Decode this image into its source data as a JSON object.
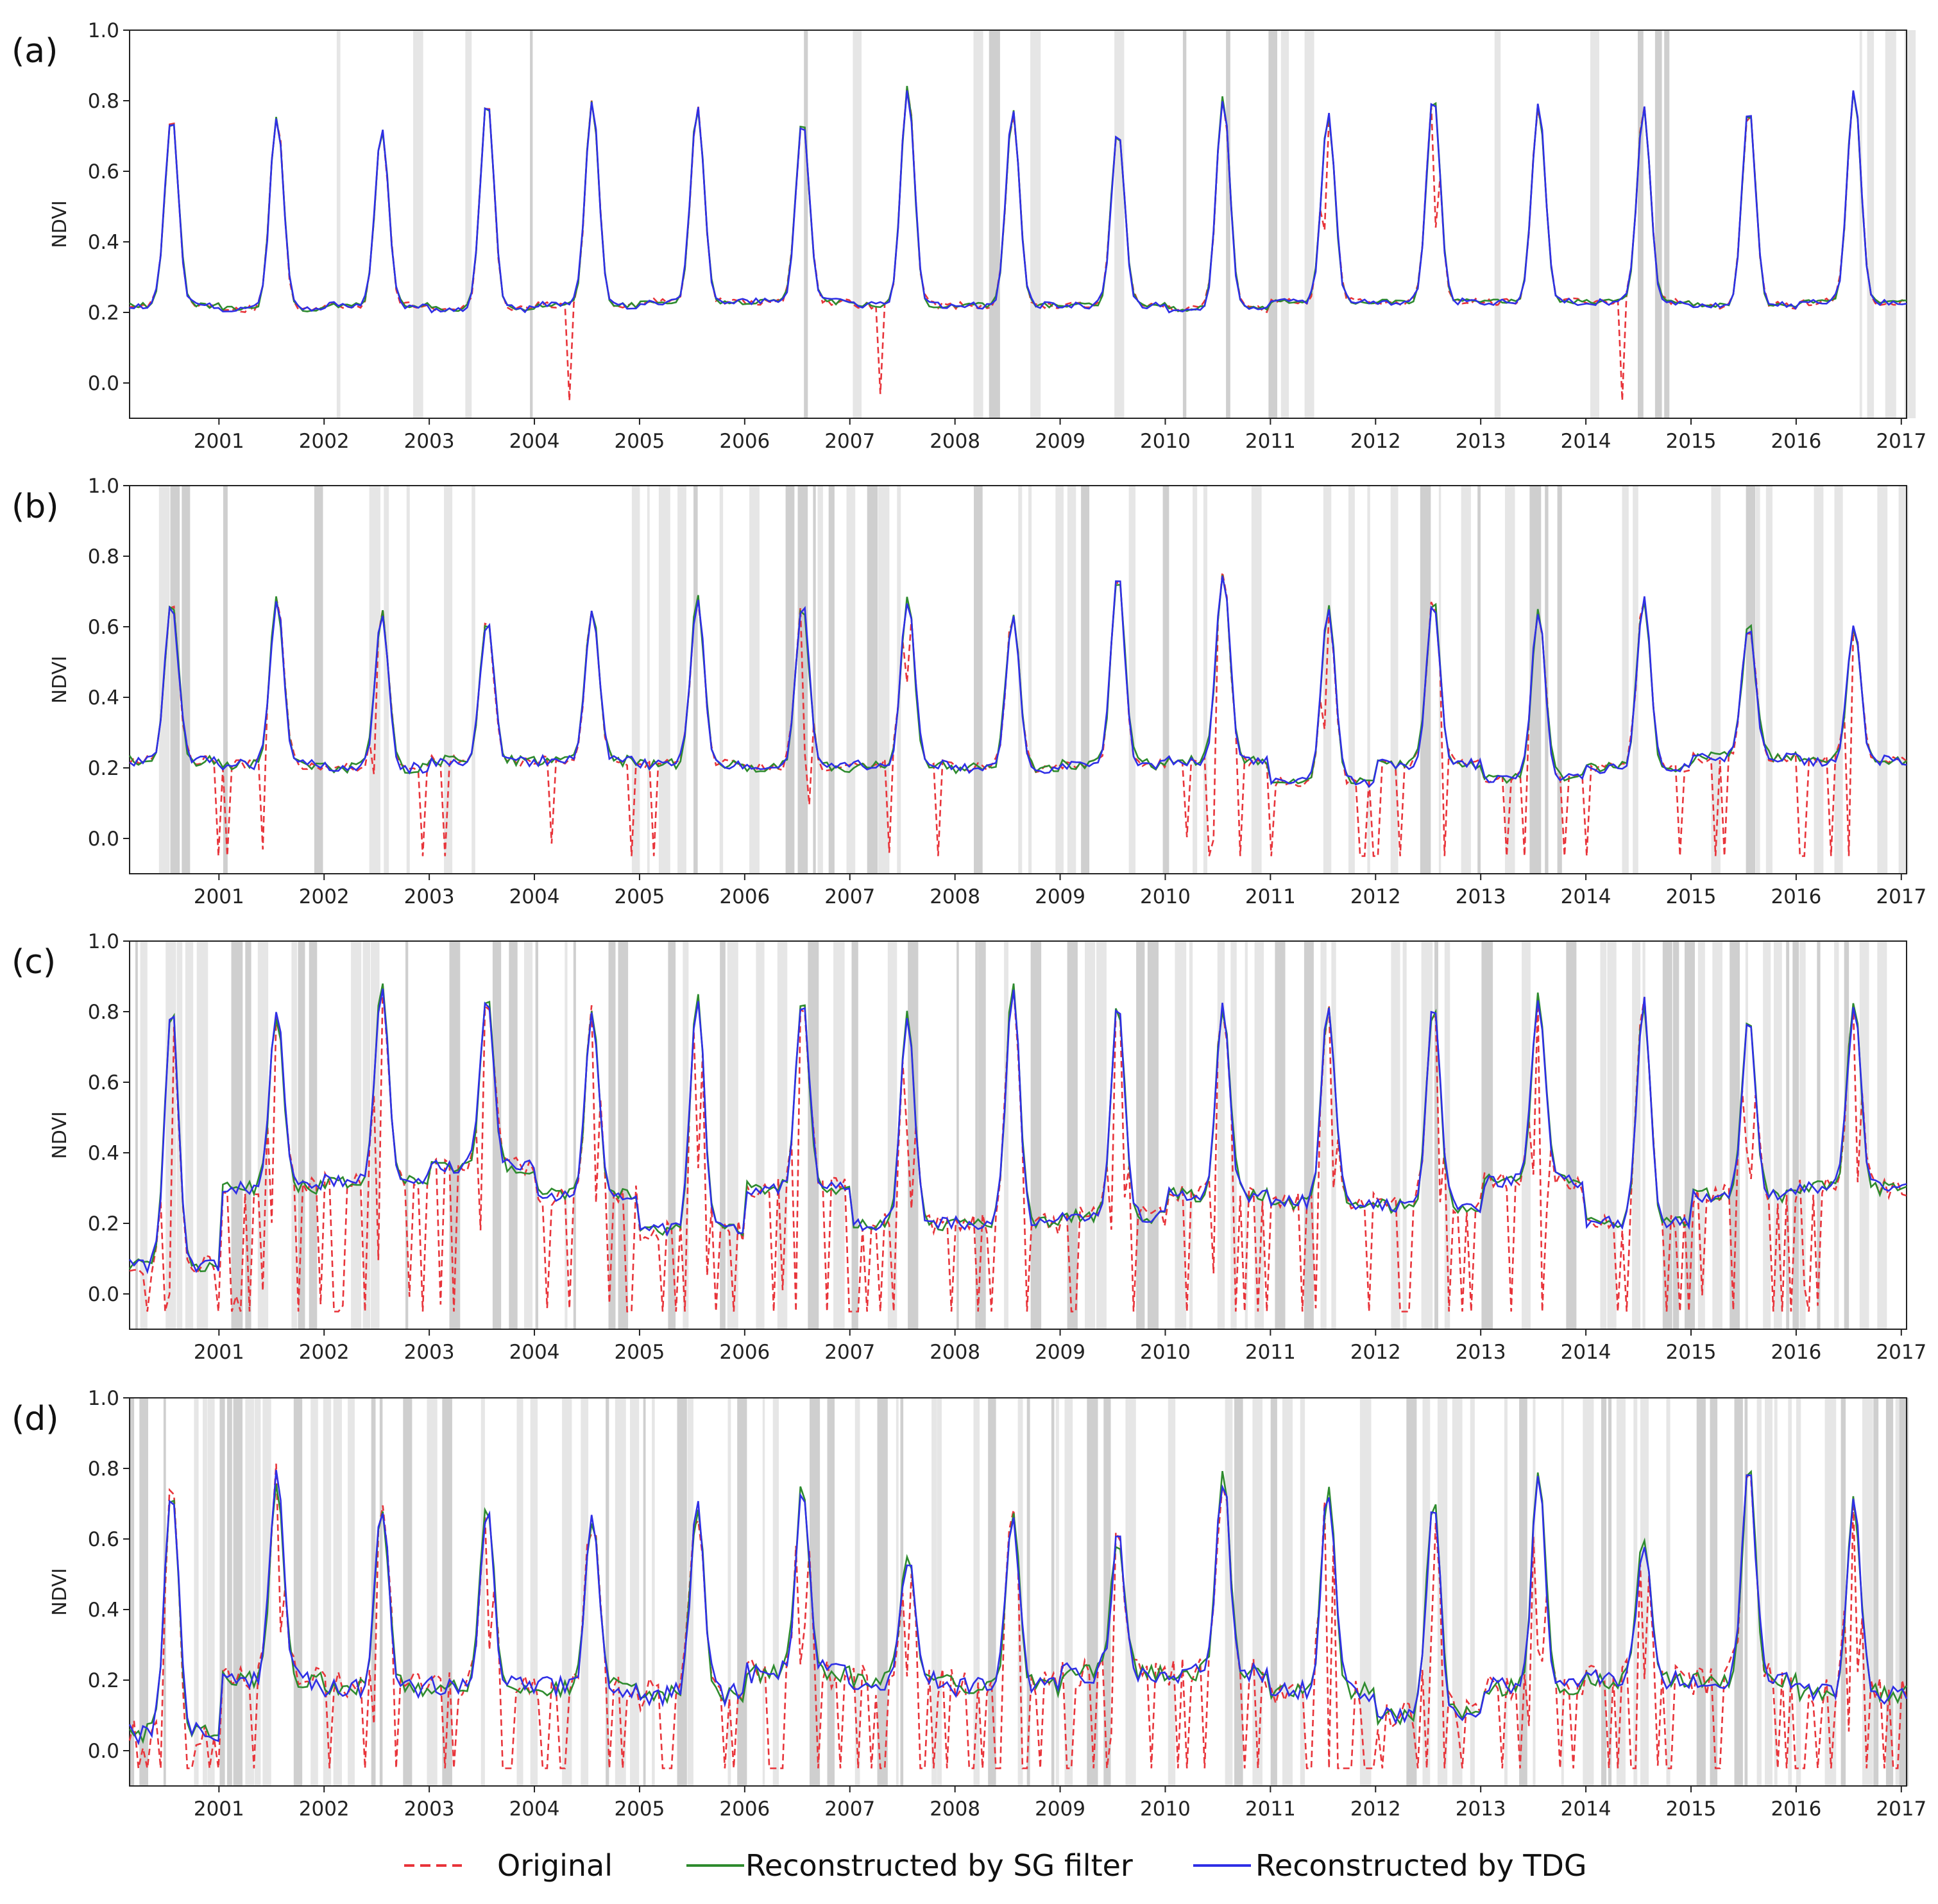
{
  "chart_data": {
    "type": "line",
    "ylabel": "NDVI",
    "ylim": [
      -0.1,
      1.0
    ],
    "xlim": [
      2000.15,
      2017.05
    ],
    "x_tick_labels": [
      "2001",
      "2002",
      "2003",
      "2004",
      "2005",
      "2006",
      "2007",
      "2008",
      "2009",
      "2010",
      "2011",
      "2012",
      "2013",
      "2014",
      "2015",
      "2016",
      "2017"
    ],
    "y_tick_labels": [
      "0.0",
      "0.2",
      "0.4",
      "0.6",
      "0.8",
      "1.0"
    ],
    "legend": {
      "placement": "bottom-center",
      "entries": [
        {
          "label": "Original",
          "color": "#e8343a",
          "style": "dashed"
        },
        {
          "label": "Reconstructed by SG filter",
          "color": "#2e8b2e",
          "style": "solid"
        },
        {
          "label": "Reconstructed by TDG",
          "color": "#2f2fe6",
          "style": "solid"
        }
      ]
    },
    "panels": [
      {
        "label": "(a)",
        "peaks": [
          0.76,
          0.76,
          0.72,
          0.81,
          0.8,
          0.78,
          0.75,
          0.84,
          0.77,
          0.72,
          0.81,
          0.76,
          0.82,
          0.79,
          0.78,
          0.78,
          0.83
        ],
        "troughs": [
          0.22,
          0.21,
          0.22,
          0.21,
          0.22,
          0.23,
          0.23,
          0.22,
          0.22,
          0.22,
          0.21,
          0.23,
          0.23,
          0.23,
          0.23,
          0.22,
          0.23
        ],
        "sg_dev": 0.015,
        "tdg_dev": 0.02,
        "drop_count": 6,
        "drop_depth": 0.2,
        "noise": 0.02,
        "cloud": 0.12,
        "seed": 11
      },
      {
        "label": "(b)",
        "peaks": [
          0.67,
          0.68,
          0.64,
          0.62,
          0.66,
          0.68,
          0.67,
          0.68,
          0.63,
          0.75,
          0.76,
          0.66,
          0.68,
          0.65,
          0.68,
          0.61,
          0.6
        ],
        "troughs": [
          0.22,
          0.21,
          0.2,
          0.22,
          0.22,
          0.21,
          0.2,
          0.21,
          0.2,
          0.21,
          0.22,
          0.16,
          0.21,
          0.17,
          0.2,
          0.23,
          0.22
        ],
        "sg_dev": 0.03,
        "tdg_dev": 0.03,
        "drop_count": 40,
        "drop_depth": 0.22,
        "noise": 0.03,
        "cloud": 0.32,
        "seed": 23
      },
      {
        "label": "(c)",
        "peaks": [
          0.82,
          0.8,
          0.87,
          0.84,
          0.8,
          0.85,
          0.83,
          0.8,
          0.88,
          0.82,
          0.82,
          0.81,
          0.82,
          0.84,
          0.83,
          0.79,
          0.82
        ],
        "troughs": [
          0.08,
          0.3,
          0.32,
          0.36,
          0.28,
          0.18,
          0.3,
          0.2,
          0.2,
          0.22,
          0.28,
          0.26,
          0.25,
          0.32,
          0.2,
          0.28,
          0.3
        ],
        "sg_dev": 0.04,
        "tdg_dev": 0.04,
        "drop_count": 110,
        "drop_depth": 0.3,
        "noise": 0.06,
        "cloud": 0.52,
        "seed": 37
      },
      {
        "label": "(d)",
        "peaks": [
          0.76,
          0.78,
          0.7,
          0.7,
          0.66,
          0.7,
          0.76,
          0.55,
          0.67,
          0.6,
          0.78,
          0.75,
          0.72,
          0.78,
          0.6,
          0.8,
          0.7
        ],
        "troughs": [
          0.05,
          0.2,
          0.18,
          0.18,
          0.18,
          0.16,
          0.22,
          0.2,
          0.18,
          0.22,
          0.22,
          0.17,
          0.1,
          0.18,
          0.2,
          0.2,
          0.16
        ],
        "sg_dev": 0.05,
        "tdg_dev": 0.06,
        "drop_count": 140,
        "drop_depth": 0.3,
        "noise": 0.09,
        "cloud": 0.62,
        "seed": 53
      }
    ]
  }
}
